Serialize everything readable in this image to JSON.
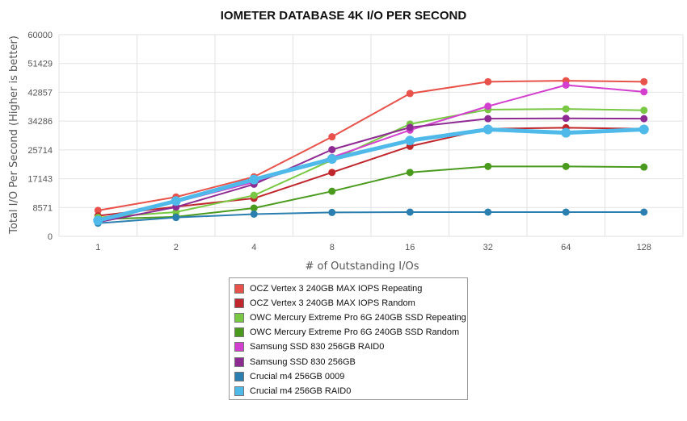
{
  "chart_data": {
    "type": "line",
    "title": "IOMETER DATABASE 4K I/O PER SECOND",
    "xlabel": "# of Outstanding I/Os",
    "ylabel": "Total I/O Per Second (Higher is better)",
    "categories": [
      "1",
      "2",
      "4",
      "8",
      "16",
      "32",
      "64",
      "128"
    ],
    "yticks": [
      "0",
      "8571",
      "17143",
      "25714",
      "34286",
      "42857",
      "51429",
      "60000"
    ],
    "ylim": [
      0,
      60000
    ],
    "grid": true,
    "legend_position": "bottom",
    "series": [
      {
        "name": "OCZ Vertex 3 240GB MAX IOPS Repeating",
        "color": "#e8524a",
        "values": [
          7700,
          11700,
          17700,
          29600,
          42500,
          46000,
          46300,
          46000
        ]
      },
      {
        "name": "OCZ Vertex 3 240GB MAX IOPS Random",
        "color": "#c0272d",
        "values": [
          6100,
          8800,
          11300,
          19000,
          26800,
          32000,
          32300,
          32000
        ]
      },
      {
        "name": "OWC Mercury Extreme Pro 6G 240GB SSD Repeating",
        "color": "#79c843",
        "values": [
          5600,
          7200,
          12200,
          22700,
          33400,
          37700,
          37900,
          37500
        ]
      },
      {
        "name": "OWC Mercury Extreme Pro 6G 240GB SSD Random",
        "color": "#4a9a1e",
        "values": [
          5100,
          5800,
          8400,
          13400,
          19000,
          20800,
          20800,
          20600
        ]
      },
      {
        "name": "Samsung SSD 830 256GB RAID0",
        "color": "#d340cf",
        "values": [
          4500,
          10200,
          16100,
          23500,
          31600,
          38700,
          45000,
          43000
        ]
      },
      {
        "name": "Samsung SSD 830 256GB",
        "color": "#8e2b93",
        "values": [
          4200,
          8700,
          15500,
          25800,
          32400,
          35000,
          35100,
          35000
        ]
      },
      {
        "name": "Crucial m4 256GB 0009",
        "color": "#2a7fb0",
        "values": [
          3900,
          5600,
          6600,
          7100,
          7200,
          7200,
          7200,
          7200
        ]
      },
      {
        "name": "Crucial m4 256GB RAID0",
        "color": "#4fb9ea",
        "values": [
          4700,
          10500,
          16900,
          23000,
          28500,
          31800,
          30800,
          31800
        ]
      }
    ]
  }
}
